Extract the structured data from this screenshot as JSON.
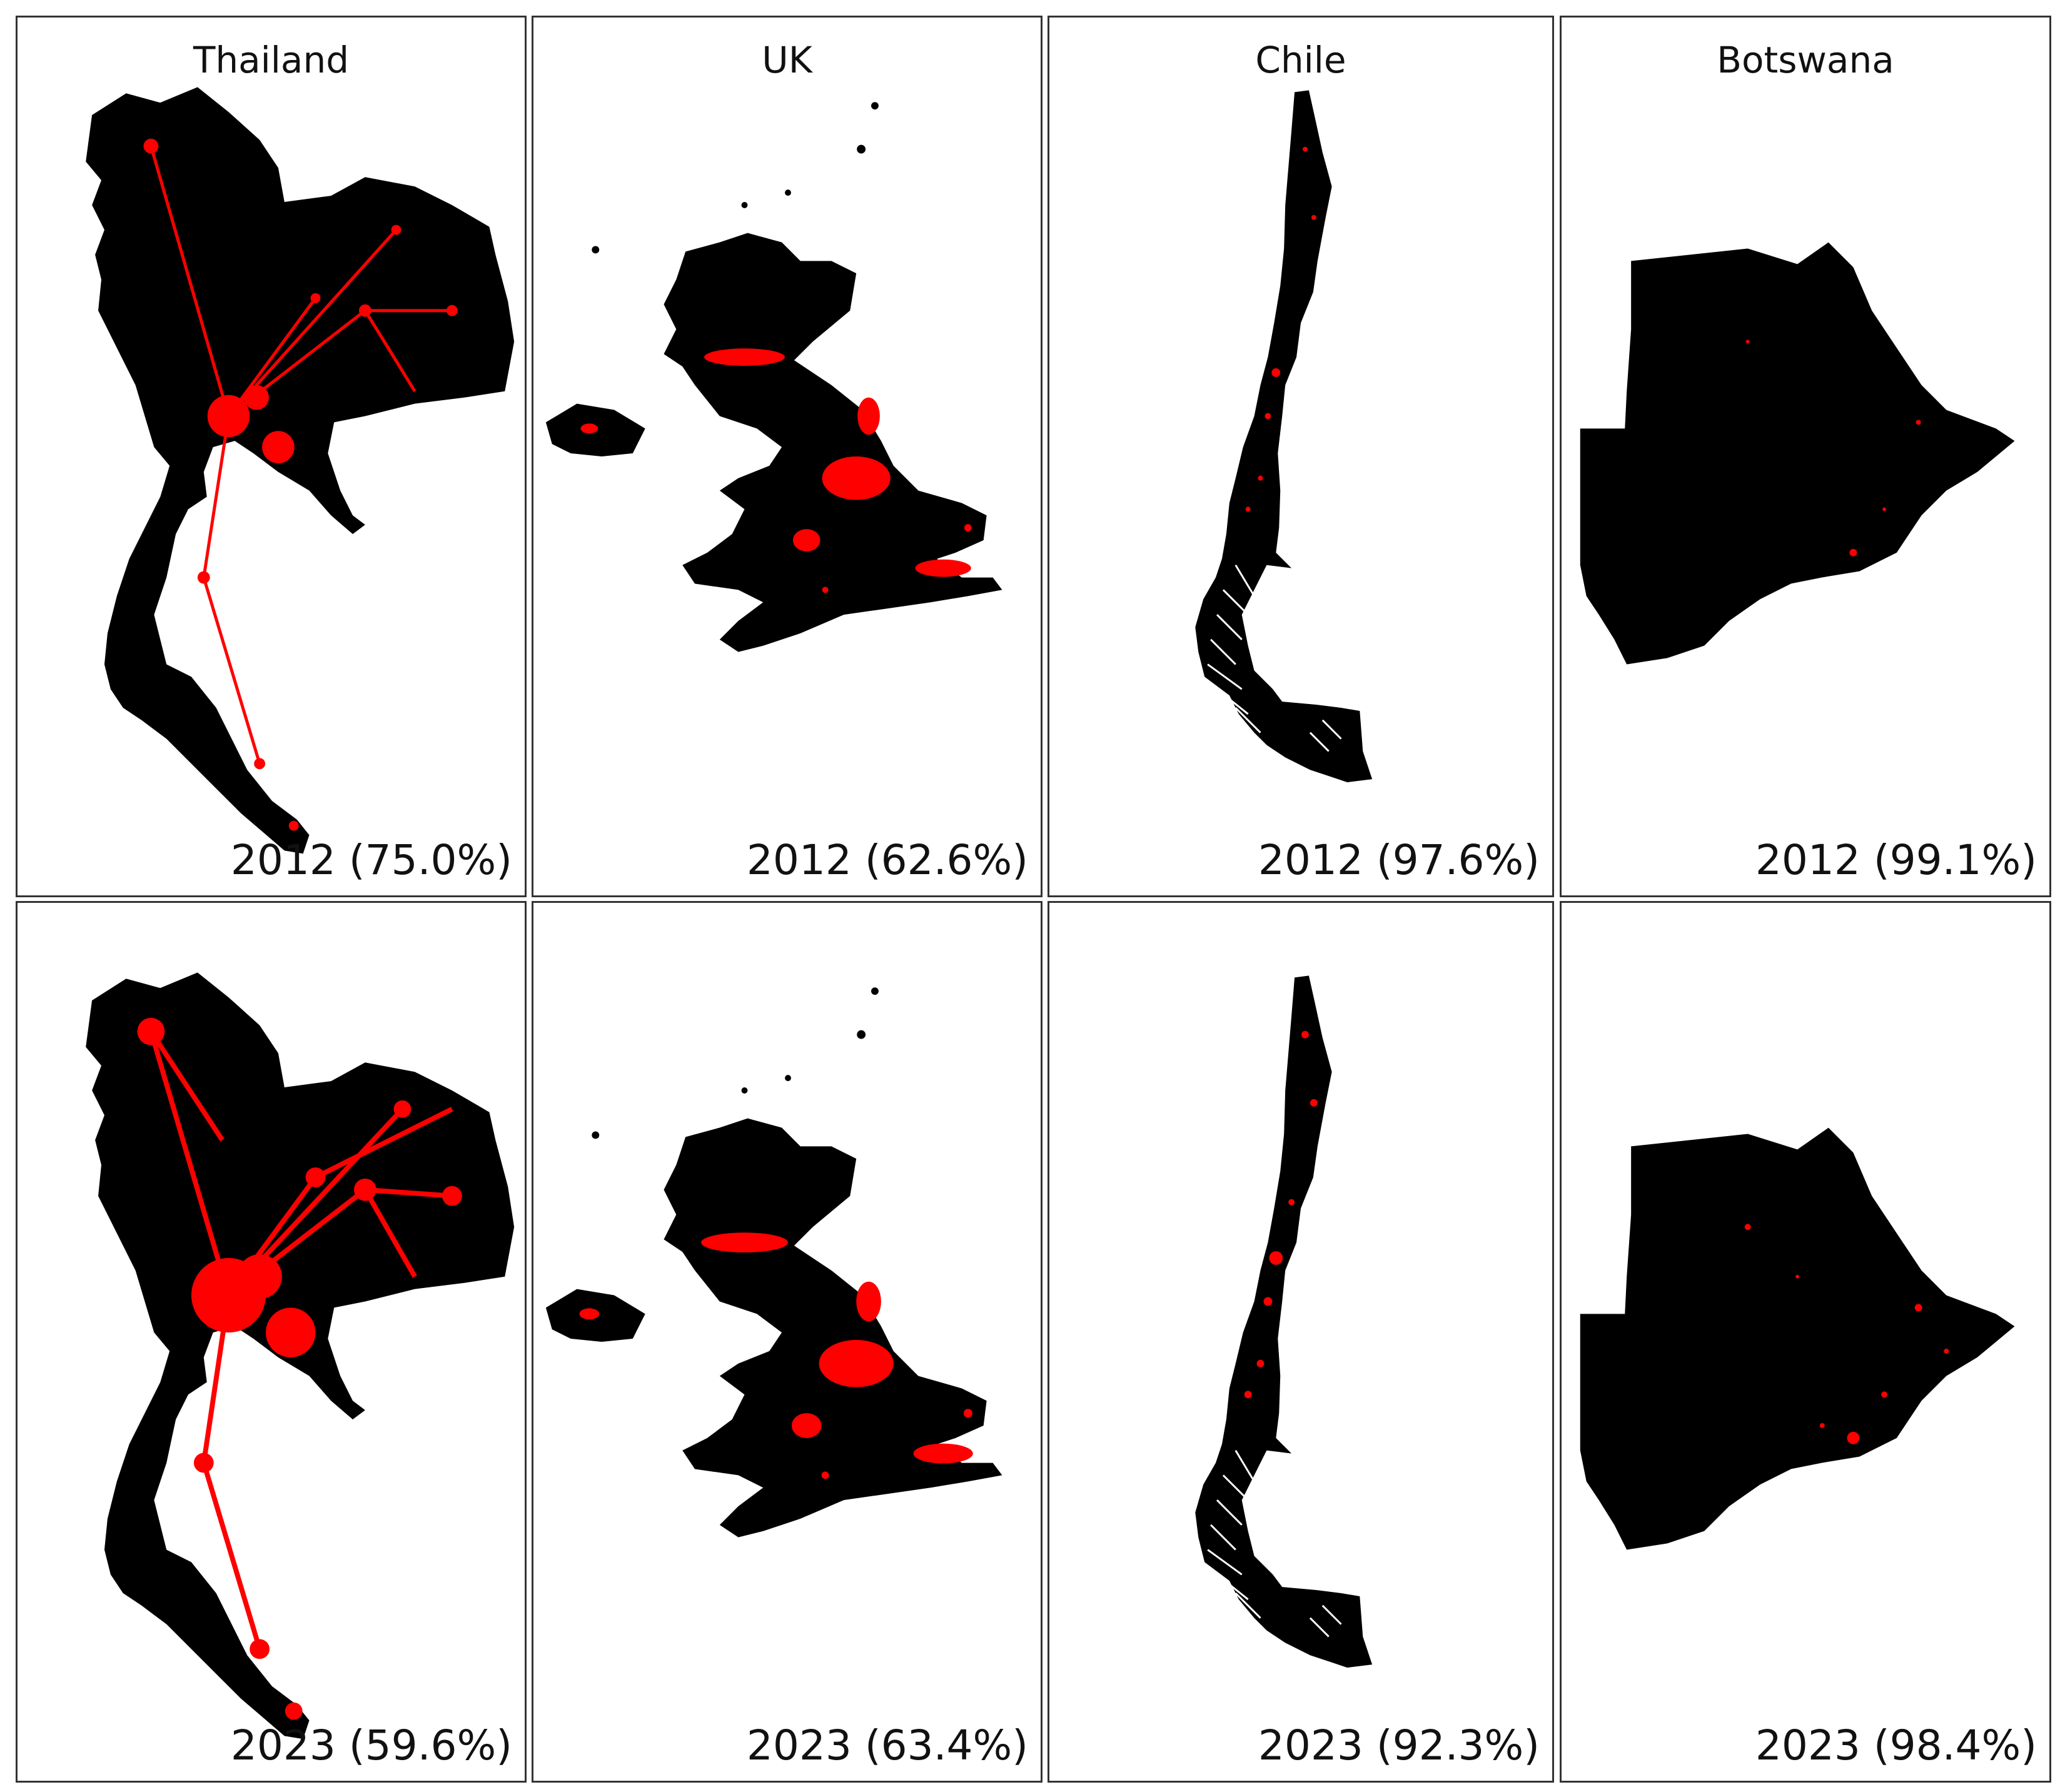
{
  "legend": {
    "land_color": "#000000",
    "nightlight_color": "#ff0000",
    "background_color": "#ffffff"
  },
  "countries": [
    {
      "name": "Thailand",
      "panels": [
        {
          "year": "2012",
          "percent": "75.0%",
          "label": "2012 (75.0%)"
        },
        {
          "year": "2023",
          "percent": "59.6%",
          "label": "2023 (59.6%)"
        }
      ]
    },
    {
      "name": "UK",
      "panels": [
        {
          "year": "2012",
          "percent": "62.6%",
          "label": "2012 (62.6%)"
        },
        {
          "year": "2023",
          "percent": "63.4%",
          "label": "2023 (63.4%)"
        }
      ]
    },
    {
      "name": "Chile",
      "panels": [
        {
          "year": "2012",
          "percent": "97.6%",
          "label": "2012 (97.6%)"
        },
        {
          "year": "2023",
          "percent": "92.3%",
          "label": "2023 (92.3%)"
        }
      ]
    },
    {
      "name": "Botswana",
      "panels": [
        {
          "year": "2012",
          "percent": "99.1%",
          "label": "2012 (99.1%)"
        },
        {
          "year": "2023",
          "percent": "98.4%",
          "label": "2023 (98.4%)"
        }
      ]
    }
  ]
}
